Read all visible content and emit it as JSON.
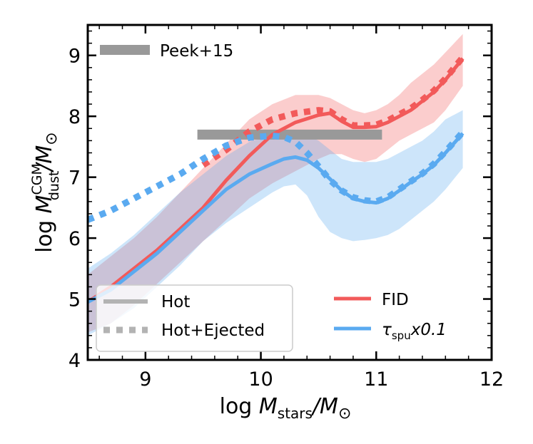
{
  "chart_data": {
    "type": "line",
    "xlabel": {
      "prefix": "log ",
      "symbol": "M",
      "sub": "stars",
      "unit": "/M",
      "unit_sub": "⊙"
    },
    "ylabel": {
      "prefix": "log ",
      "symbol": "M",
      "sup": "CGM",
      "sub": "dust",
      "unit": "/M",
      "unit_sub": "⊙"
    },
    "xlim": [
      8.5,
      12.0
    ],
    "ylim": [
      4.0,
      9.5
    ],
    "xticks": [
      9,
      10,
      11,
      12
    ],
    "yticks": [
      4,
      5,
      6,
      7,
      8,
      9
    ],
    "xtick_labels": [
      "9",
      "10",
      "11",
      "12"
    ],
    "ytick_labels": [
      "4",
      "5",
      "6",
      "7",
      "8",
      "9"
    ],
    "colors": {
      "fid": "#f25a5a",
      "spu": "#5aaaf0",
      "peek": "#999999",
      "legend_gray": "#b3b3b3"
    },
    "peek": {
      "label": "Peek+15",
      "x_range": [
        9.45,
        11.05
      ],
      "y": 7.7
    },
    "series": [
      {
        "name": "FID",
        "color": "#f25a5a",
        "hot": {
          "x": [
            8.5,
            8.7,
            8.9,
            9.1,
            9.3,
            9.5,
            9.7,
            9.9,
            10.1,
            10.3,
            10.5,
            10.6,
            10.7,
            10.8,
            10.9,
            11.0,
            11.1,
            11.2,
            11.3,
            11.4,
            11.5,
            11.6,
            11.75
          ],
          "y": [
            4.95,
            5.2,
            5.5,
            5.8,
            6.15,
            6.5,
            6.95,
            7.35,
            7.7,
            7.9,
            8.02,
            8.05,
            7.92,
            7.82,
            7.82,
            7.83,
            7.9,
            8.0,
            8.1,
            8.25,
            8.4,
            8.6,
            8.95
          ]
        },
        "ejected": {
          "x": [
            9.5,
            9.7,
            9.9,
            10.1,
            10.3,
            10.5,
            10.6,
            10.7,
            10.8,
            10.9,
            11.0,
            11.1,
            11.2,
            11.3,
            11.4,
            11.5,
            11.6,
            11.75
          ],
          "y": [
            7.2,
            7.45,
            7.75,
            7.95,
            8.05,
            8.1,
            8.08,
            7.95,
            7.85,
            7.85,
            7.86,
            7.93,
            8.03,
            8.13,
            8.27,
            8.42,
            8.62,
            8.97
          ]
        },
        "band_upper": [
          5.4,
          5.7,
          6.0,
          6.35,
          6.75,
          7.15,
          7.55,
          7.95,
          8.2,
          8.35,
          8.35,
          8.3,
          8.2,
          8.1,
          8.05,
          8.1,
          8.2,
          8.35,
          8.55,
          8.7,
          8.85,
          9.05,
          9.35
        ],
        "band_lower": [
          4.45,
          4.6,
          4.9,
          5.25,
          5.6,
          5.95,
          6.3,
          6.65,
          6.9,
          7.1,
          7.3,
          7.38,
          7.38,
          7.3,
          7.25,
          7.3,
          7.45,
          7.6,
          7.7,
          7.8,
          7.9,
          8.1,
          8.5
        ]
      },
      {
        "name": "τspux0.1",
        "color": "#5aaaf0",
        "hot": {
          "x": [
            8.5,
            8.7,
            8.9,
            9.1,
            9.3,
            9.5,
            9.7,
            9.9,
            10.1,
            10.2,
            10.3,
            10.4,
            10.5,
            10.6,
            10.7,
            10.8,
            10.9,
            11.0,
            11.1,
            11.2,
            11.3,
            11.4,
            11.5,
            11.6,
            11.75
          ],
          "y": [
            4.95,
            5.15,
            5.45,
            5.75,
            6.1,
            6.45,
            6.8,
            7.05,
            7.22,
            7.3,
            7.33,
            7.28,
            7.15,
            6.97,
            6.78,
            6.65,
            6.6,
            6.58,
            6.65,
            6.78,
            6.92,
            7.05,
            7.2,
            7.4,
            7.72
          ]
        },
        "ejected": {
          "x": [
            8.5,
            8.7,
            8.9,
            9.1,
            9.3,
            9.5,
            9.7,
            9.9,
            10.1,
            10.2,
            10.3,
            10.4,
            10.5,
            10.6,
            10.7,
            10.8,
            10.9,
            11.0,
            11.1,
            11.2,
            11.3,
            11.4,
            11.5,
            11.6,
            11.75
          ],
          "y": [
            6.3,
            6.45,
            6.65,
            6.85,
            7.05,
            7.3,
            7.52,
            7.65,
            7.68,
            7.66,
            7.58,
            7.4,
            7.18,
            6.95,
            6.78,
            6.67,
            6.62,
            6.6,
            6.67,
            6.8,
            6.93,
            7.06,
            7.22,
            7.42,
            7.74
          ]
        },
        "band_upper": [
          5.5,
          5.75,
          6.05,
          6.4,
          6.75,
          7.05,
          7.35,
          7.58,
          7.7,
          7.75,
          7.75,
          7.7,
          7.6,
          7.45,
          7.3,
          7.25,
          7.25,
          7.25,
          7.3,
          7.4,
          7.5,
          7.6,
          7.75,
          7.95,
          8.1
        ],
        "band_lower": [
          4.4,
          4.6,
          4.85,
          5.2,
          5.55,
          5.95,
          6.25,
          6.5,
          6.75,
          6.85,
          6.88,
          6.7,
          6.35,
          6.1,
          6.0,
          5.95,
          5.97,
          6.0,
          6.05,
          6.15,
          6.3,
          6.45,
          6.6,
          6.8,
          7.15
        ]
      }
    ],
    "legend_lower_left": [
      {
        "label": "Hot",
        "style": "solid"
      },
      {
        "label": "Hot+Ejected",
        "style": "dotted"
      }
    ],
    "legend_lower_right": [
      {
        "label": "FID",
        "color": "#f25a5a"
      },
      {
        "label": "τspux0.1",
        "symbol": "τ",
        "sub": "spu",
        "rest": "x0.1",
        "color": "#5aaaf0"
      }
    ]
  }
}
